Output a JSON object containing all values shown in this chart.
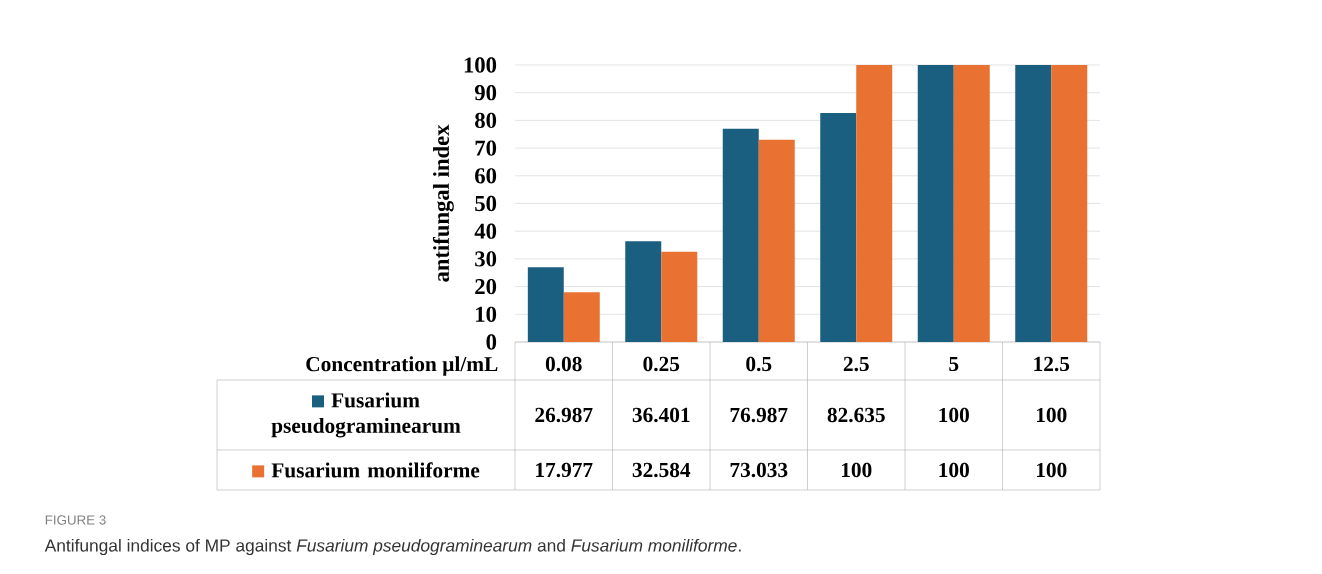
{
  "chart_data": {
    "type": "bar",
    "ylabel": "antifungal index",
    "xlabel": "Concentration µl/mL",
    "categories": [
      "0.08",
      "0.25",
      "0.5",
      "2.5",
      "5",
      "12.5"
    ],
    "series": [
      {
        "name": "Fusarium pseudograminearum",
        "color": "#1a5f80",
        "values": [
          26.987,
          36.401,
          76.987,
          82.635,
          100,
          100
        ]
      },
      {
        "name": "Fusarium moniliforme",
        "color": "#e97132",
        "values": [
          17.977,
          32.584,
          73.033,
          100,
          100,
          100
        ]
      }
    ],
    "ylim": [
      0,
      100
    ],
    "yticks": [
      0,
      10,
      20,
      30,
      40,
      50,
      60,
      70,
      80,
      90,
      100
    ],
    "grid": "y",
    "data_labels": true,
    "legend": "bottom",
    "annotations": [
      "FIGURE 3",
      "Antifungal indices of MP against *Fusarium pseudograminearum* and *Fusarium moniliforme*."
    ]
  }
}
